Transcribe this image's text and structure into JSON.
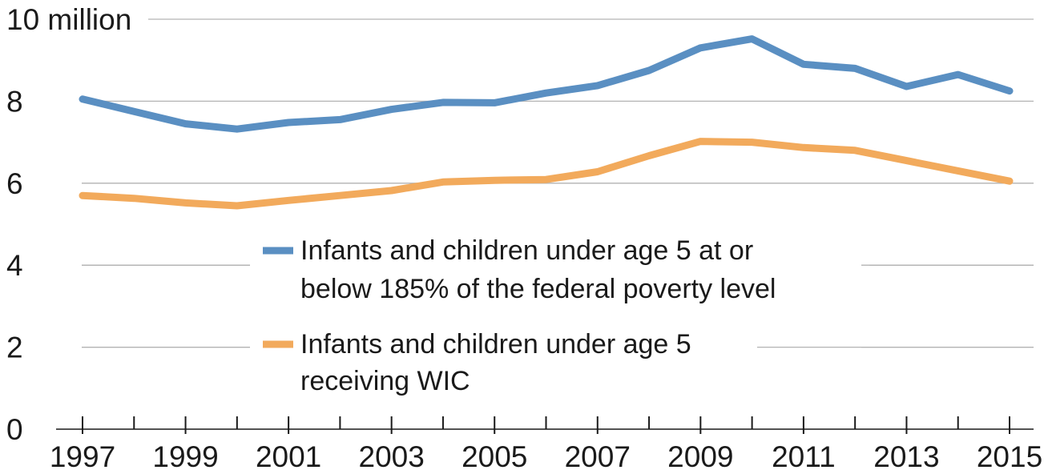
{
  "chart_data": {
    "type": "line",
    "x": [
      1997,
      1998,
      1999,
      2000,
      2001,
      2002,
      2003,
      2004,
      2005,
      2006,
      2007,
      2008,
      2009,
      2010,
      2011,
      2012,
      2013,
      2014,
      2015
    ],
    "series": [
      {
        "name": "Infants and children under age 5 at or below 185% of the federal poverty level",
        "legend_lines": [
          "Infants and children under age 5 at or",
          "below 185% of the federal poverty level"
        ],
        "color": "#5a8fc2",
        "values": [
          8.05,
          7.75,
          7.45,
          7.32,
          7.48,
          7.55,
          7.8,
          7.97,
          7.96,
          8.2,
          8.38,
          8.75,
          9.3,
          9.52,
          8.9,
          8.8,
          8.36,
          8.65,
          8.25
        ]
      },
      {
        "name": "Infants and children under age 5 receiving WIC",
        "legend_lines": [
          "Infants and children under age 5",
          "receiving WIC"
        ],
        "color": "#f2aa5c",
        "values": [
          5.7,
          5.63,
          5.52,
          5.45,
          5.58,
          5.7,
          5.82,
          6.03,
          6.07,
          6.09,
          6.28,
          6.67,
          7.02,
          7.0,
          6.87,
          6.8,
          6.55,
          6.3,
          6.05
        ]
      }
    ],
    "x_tick_labels": [
      "1997",
      "1999",
      "2001",
      "2003",
      "2005",
      "2007",
      "2009",
      "2011",
      "2013",
      "2015"
    ],
    "y_tick_labels": [
      "0",
      "2",
      "4",
      "6",
      "8",
      "10 million"
    ],
    "y_ticks": [
      0,
      2,
      4,
      6,
      8,
      10
    ],
    "ylim": [
      0,
      10
    ],
    "xlim": [
      1997,
      2015
    ],
    "grid": "horizontal",
    "legend_position": "center"
  }
}
